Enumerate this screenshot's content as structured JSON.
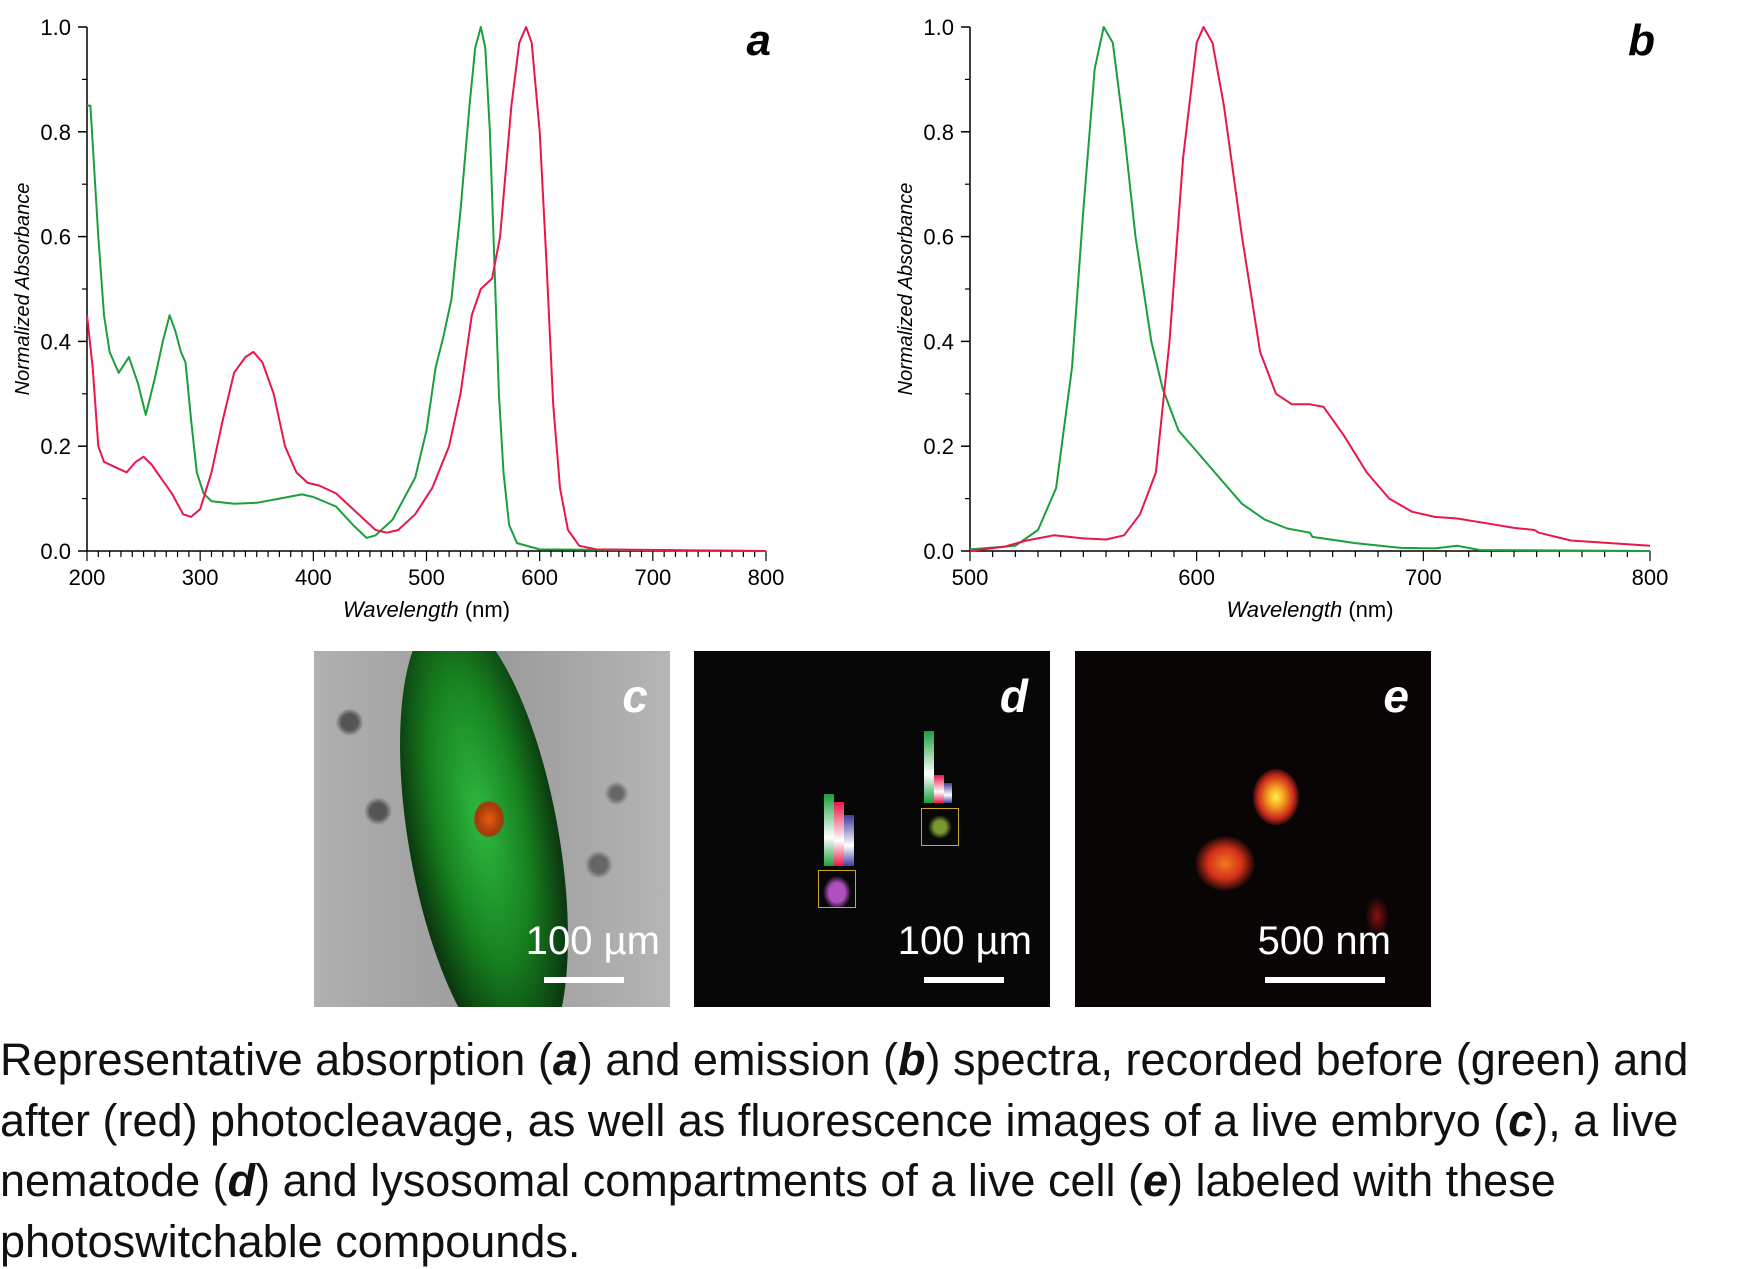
{
  "colors": {
    "before": "#1a9e3e",
    "after": "#e8174a"
  },
  "chart_data": [
    {
      "panel_label": "a",
      "type": "line",
      "xlabel_italic": "Wavelength",
      "xlabel_unit": "(nm)",
      "ylabel": "Normalized Absorbance",
      "xlim": [
        200,
        800
      ],
      "ylim": [
        0,
        1.0
      ],
      "xticks": [
        200,
        300,
        400,
        500,
        600,
        700,
        800
      ],
      "yticks": [
        "0.0",
        "0.2",
        "0.4",
        "0.6",
        "0.8",
        "1.0"
      ],
      "grid": false,
      "series": [
        {
          "color": "#1a9e3e",
          "points": [
            [
              200,
              0.85
            ],
            [
              203,
              0.85
            ],
            [
              210,
              0.6
            ],
            [
              215,
              0.45
            ],
            [
              220,
              0.38
            ],
            [
              228,
              0.34
            ],
            [
              237,
              0.37
            ],
            [
              245,
              0.32
            ],
            [
              252,
              0.26
            ],
            [
              260,
              0.33
            ],
            [
              267,
              0.4
            ],
            [
              273,
              0.45
            ],
            [
              278,
              0.42
            ],
            [
              283,
              0.38
            ],
            [
              287,
              0.36
            ],
            [
              292,
              0.25
            ],
            [
              297,
              0.15
            ],
            [
              303,
              0.11
            ],
            [
              310,
              0.095
            ],
            [
              330,
              0.09
            ],
            [
              350,
              0.092
            ],
            [
              370,
              0.1
            ],
            [
              390,
              0.108
            ],
            [
              400,
              0.103
            ],
            [
              420,
              0.085
            ],
            [
              435,
              0.05
            ],
            [
              447,
              0.025
            ],
            [
              455,
              0.03
            ],
            [
              470,
              0.06
            ],
            [
              490,
              0.14
            ],
            [
              500,
              0.23
            ],
            [
              508,
              0.35
            ],
            [
              515,
              0.41
            ],
            [
              522,
              0.48
            ],
            [
              530,
              0.65
            ],
            [
              538,
              0.85
            ],
            [
              543,
              0.96
            ],
            [
              548,
              1.0
            ],
            [
              552,
              0.96
            ],
            [
              556,
              0.8
            ],
            [
              560,
              0.55
            ],
            [
              564,
              0.3
            ],
            [
              568,
              0.15
            ],
            [
              573,
              0.05
            ],
            [
              580,
              0.015
            ],
            [
              600,
              0.003
            ],
            [
              800,
              0.0
            ]
          ]
        },
        {
          "color": "#e8174a",
          "points": [
            [
              200,
              0.45
            ],
            [
              205,
              0.35
            ],
            [
              210,
              0.2
            ],
            [
              215,
              0.17
            ],
            [
              225,
              0.16
            ],
            [
              235,
              0.15
            ],
            [
              243,
              0.17
            ],
            [
              250,
              0.18
            ],
            [
              257,
              0.165
            ],
            [
              265,
              0.14
            ],
            [
              275,
              0.11
            ],
            [
              280,
              0.09
            ],
            [
              285,
              0.07
            ],
            [
              292,
              0.065
            ],
            [
              300,
              0.08
            ],
            [
              310,
              0.15
            ],
            [
              320,
              0.25
            ],
            [
              330,
              0.34
            ],
            [
              340,
              0.37
            ],
            [
              347,
              0.38
            ],
            [
              355,
              0.36
            ],
            [
              365,
              0.3
            ],
            [
              375,
              0.2
            ],
            [
              385,
              0.15
            ],
            [
              395,
              0.13
            ],
            [
              405,
              0.125
            ],
            [
              420,
              0.11
            ],
            [
              440,
              0.07
            ],
            [
              455,
              0.04
            ],
            [
              465,
              0.035
            ],
            [
              475,
              0.04
            ],
            [
              490,
              0.07
            ],
            [
              505,
              0.12
            ],
            [
              520,
              0.2
            ],
            [
              530,
              0.3
            ],
            [
              540,
              0.45
            ],
            [
              548,
              0.5
            ],
            [
              558,
              0.52
            ],
            [
              565,
              0.6
            ],
            [
              575,
              0.85
            ],
            [
              582,
              0.97
            ],
            [
              588,
              1.0
            ],
            [
              593,
              0.97
            ],
            [
              600,
              0.8
            ],
            [
              606,
              0.55
            ],
            [
              612,
              0.28
            ],
            [
              618,
              0.12
            ],
            [
              625,
              0.04
            ],
            [
              635,
              0.01
            ],
            [
              650,
              0.003
            ],
            [
              800,
              0.0
            ]
          ]
        }
      ]
    },
    {
      "panel_label": "b",
      "type": "line",
      "xlabel_italic": "Wavelength",
      "xlabel_unit": "(nm)",
      "ylabel": "Normalized Absorbance",
      "xlim": [
        500,
        800
      ],
      "ylim": [
        0,
        1.0
      ],
      "xticks": [
        500,
        600,
        700,
        800
      ],
      "yticks": [
        "0.0",
        "0.2",
        "0.4",
        "0.6",
        "0.8",
        "1.0"
      ],
      "grid": false,
      "series": [
        {
          "color": "#1a9e3e",
          "points": [
            [
              500,
              0.003
            ],
            [
              520,
              0.01
            ],
            [
              530,
              0.04
            ],
            [
              538,
              0.12
            ],
            [
              545,
              0.35
            ],
            [
              550,
              0.65
            ],
            [
              555,
              0.92
            ],
            [
              559,
              1.0
            ],
            [
              563,
              0.97
            ],
            [
              568,
              0.8
            ],
            [
              573,
              0.6
            ],
            [
              580,
              0.4
            ],
            [
              585,
              0.31
            ],
            [
              592,
              0.23
            ],
            [
              600,
              0.19
            ],
            [
              610,
              0.14
            ],
            [
              620,
              0.09
            ],
            [
              630,
              0.06
            ],
            [
              640,
              0.043
            ],
            [
              650,
              0.035
            ],
            [
              651,
              0.027
            ],
            [
              670,
              0.015
            ],
            [
              690,
              0.006
            ],
            [
              705,
              0.005
            ],
            [
              715,
              0.01
            ],
            [
              725,
              0.002
            ],
            [
              800,
              0.0
            ]
          ]
        },
        {
          "color": "#e8174a",
          "points": [
            [
              500,
              0.0
            ],
            [
              515,
              0.008
            ],
            [
              525,
              0.02
            ],
            [
              537,
              0.03
            ],
            [
              550,
              0.024
            ],
            [
              560,
              0.022
            ],
            [
              568,
              0.03
            ],
            [
              575,
              0.07
            ],
            [
              582,
              0.15
            ],
            [
              588,
              0.4
            ],
            [
              594,
              0.75
            ],
            [
              600,
              0.97
            ],
            [
              603,
              1.0
            ],
            [
              607,
              0.97
            ],
            [
              612,
              0.85
            ],
            [
              620,
              0.6
            ],
            [
              628,
              0.38
            ],
            [
              635,
              0.3
            ],
            [
              642,
              0.28
            ],
            [
              650,
              0.28
            ],
            [
              656,
              0.275
            ],
            [
              665,
              0.22
            ],
            [
              675,
              0.15
            ],
            [
              685,
              0.1
            ],
            [
              695,
              0.075
            ],
            [
              705,
              0.065
            ],
            [
              715,
              0.062
            ],
            [
              725,
              0.055
            ],
            [
              740,
              0.044
            ],
            [
              749,
              0.04
            ],
            [
              751,
              0.035
            ],
            [
              765,
              0.02
            ],
            [
              800,
              0.01
            ]
          ]
        }
      ]
    }
  ],
  "images": [
    {
      "label": "c",
      "scale": "100 µm"
    },
    {
      "label": "d",
      "scale": "100 µm"
    },
    {
      "label": "e",
      "scale": "500 nm"
    }
  ],
  "caption": {
    "p1": "Representative absorption (",
    "a": "a",
    "p2": ") and emission (",
    "b": "b",
    "p3": ") spectra, recorded before (green) and after (red) photocleavage, as well as fluorescence images of a live embryo (",
    "c": "c",
    "p4": "), a live nematode (",
    "d": "d",
    "p5": ") and lysosomal compartments of a live cell (",
    "e": "e",
    "p6": ") labeled with these photoswitchable compounds."
  }
}
